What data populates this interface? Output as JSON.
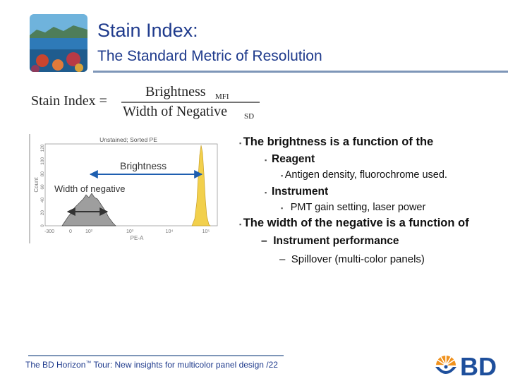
{
  "title": "Stain Index:",
  "subtitle": "The Standard Metric of Resolution",
  "formula": {
    "lhs": "Stain Index =",
    "numerator": "Brightness",
    "numerator_sub": "MFI",
    "denominator": "Width of Negative",
    "denominator_sub": "SD"
  },
  "histogram": {
    "title": "Unstained; Sorted PE",
    "ylabel": "Count",
    "xlabel": "PE-A",
    "xticks": [
      "-300",
      "0",
      "10²",
      "10³",
      "10⁴",
      "10⁵"
    ],
    "yticks": [
      "0",
      "20",
      "40",
      "60",
      "80",
      "100",
      "120"
    ],
    "brightness_label": "Brightness",
    "width_label": "Width of negative",
    "positive_color": "#f2d04c",
    "negative_color": "#9e9e9e"
  },
  "bullets": {
    "b1": "The brightness is a function of the",
    "b1_1": "Reagent",
    "b1_1_1": "Antigen density, fluorochrome used.",
    "b1_2": "Instrument",
    "b1_2_1": "PMT gain setting, laser power",
    "b2": "The width of the negative is a function of",
    "b2_1": "Instrument performance",
    "b2_1_1": "Spillover (multi-color panels)"
  },
  "footer": {
    "prefix": "The BD Horizon",
    "tm": "™",
    "tour": " Tour: New insights for multicolor panel design /",
    "page": "22"
  },
  "logo_text": "BD",
  "colors": {
    "title": "#1e3a8c",
    "rule": "#7e96b8",
    "bd_blue": "#1e4f9c",
    "bd_orange": "#f0921e"
  }
}
